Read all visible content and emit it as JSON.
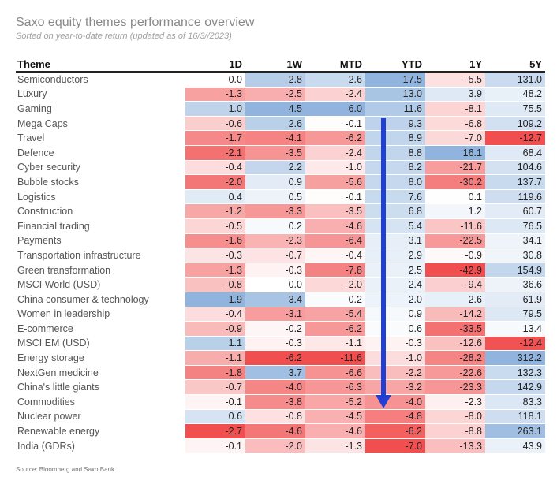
{
  "title": "Saxo equity themes performance overview",
  "subtitle": "Sorted on year-to-date return (updated as of 16/3//2023)",
  "source": "Source: Bloomberg and Saxo Bank",
  "chart_data": {
    "type": "table",
    "columns": [
      "Theme",
      "1D",
      "1W",
      "MTD",
      "YTD",
      "1Y",
      "5Y"
    ],
    "rows": [
      {
        "theme": "Semiconductors",
        "values": [
          "0.0",
          "2.8",
          "2.6",
          "17.5",
          "-5.5",
          "131.0"
        ]
      },
      {
        "theme": "Luxury",
        "values": [
          "-1.3",
          "-2.5",
          "-2.4",
          "13.0",
          "3.9",
          "48.2"
        ]
      },
      {
        "theme": "Gaming",
        "values": [
          "1.0",
          "4.5",
          "6.0",
          "11.6",
          "-8.1",
          "75.5"
        ]
      },
      {
        "theme": "Mega Caps",
        "values": [
          "-0.6",
          "2.6",
          "-0.1",
          "9.3",
          "-6.8",
          "109.2"
        ]
      },
      {
        "theme": "Travel",
        "values": [
          "-1.7",
          "-4.1",
          "-6.2",
          "8.9",
          "-7.0",
          "-12.7"
        ]
      },
      {
        "theme": "Defence",
        "values": [
          "-2.1",
          "-3.5",
          "-2.4",
          "8.8",
          "16.1",
          "68.4"
        ]
      },
      {
        "theme": "Cyber security",
        "values": [
          "-0.4",
          "2.2",
          "-1.0",
          "8.2",
          "-21.7",
          "104.6"
        ]
      },
      {
        "theme": "Bubble stocks",
        "values": [
          "-2.0",
          "0.9",
          "-5.6",
          "8.0",
          "-30.2",
          "137.7"
        ]
      },
      {
        "theme": "Logistics",
        "values": [
          "0.4",
          "0.5",
          "-0.1",
          "7.6",
          "0.1",
          "119.6"
        ]
      },
      {
        "theme": "Construction",
        "values": [
          "-1.2",
          "-3.3",
          "-3.5",
          "6.8",
          "1.2",
          "60.7"
        ]
      },
      {
        "theme": "Financial trading",
        "values": [
          "-0.5",
          "0.2",
          "-4.6",
          "5.4",
          "-11.6",
          "76.5"
        ]
      },
      {
        "theme": "Payments",
        "values": [
          "-1.6",
          "-2.3",
          "-6.4",
          "3.1",
          "-22.5",
          "34.1"
        ]
      },
      {
        "theme": "Transportation infrastructure",
        "values": [
          "-0.3",
          "-0.7",
          "-0.4",
          "2.9",
          "-0.9",
          "30.8"
        ]
      },
      {
        "theme": "Green transformation",
        "values": [
          "-1.3",
          "-0.3",
          "-7.8",
          "2.5",
          "-42.9",
          "154.9"
        ]
      },
      {
        "theme": "MSCI World (USD)",
        "values": [
          "-0.8",
          "0.0",
          "-2.0",
          "2.4",
          "-9.4",
          "36.6"
        ]
      },
      {
        "theme": "China consumer & technology",
        "values": [
          "1.9",
          "3.4",
          "0.2",
          "2.0",
          "2.6",
          "61.9"
        ]
      },
      {
        "theme": "Women in leadership",
        "values": [
          "-0.4",
          "-3.1",
          "-5.4",
          "0.9",
          "-14.2",
          "79.5"
        ]
      },
      {
        "theme": "E-commerce",
        "values": [
          "-0.9",
          "-0.2",
          "-6.2",
          "0.6",
          "-33.5",
          "13.4"
        ]
      },
      {
        "theme": "MSCI EM (USD)",
        "values": [
          "1.1",
          "-0.3",
          "-1.1",
          "-0.3",
          "-12.6",
          "-12.4"
        ]
      },
      {
        "theme": "Energy storage",
        "values": [
          "-1.1",
          "-6.2",
          "-11.6",
          "-1.0",
          "-28.2",
          "312.2"
        ]
      },
      {
        "theme": "NextGen medicine",
        "values": [
          "-1.8",
          "3.7",
          "-6.6",
          "-2.2",
          "-22.6",
          "132.3"
        ]
      },
      {
        "theme": "China's little giants",
        "values": [
          "-0.7",
          "-4.0",
          "-6.3",
          "-3.2",
          "-23.3",
          "142.9"
        ]
      },
      {
        "theme": "Commodities",
        "values": [
          "-0.1",
          "-3.8",
          "-5.2",
          "-4.0",
          "-2.3",
          "83.3"
        ]
      },
      {
        "theme": "Nuclear power",
        "values": [
          "0.6",
          "-0.8",
          "-4.5",
          "-4.8",
          "-8.0",
          "118.1"
        ]
      },
      {
        "theme": "Renewable energy",
        "values": [
          "-2.7",
          "-4.6",
          "-4.6",
          "-6.2",
          "-8.8",
          "263.1"
        ]
      },
      {
        "theme": "India (GDRs)",
        "values": [
          "-0.1",
          "-2.0",
          "-1.3",
          "-7.0",
          "-13.3",
          "43.9"
        ]
      }
    ],
    "colors": {
      "positive": "#6b9bd1",
      "negative": "#f04646",
      "neutral": "#ffffff",
      "arrow": "#1f3fd6"
    }
  }
}
